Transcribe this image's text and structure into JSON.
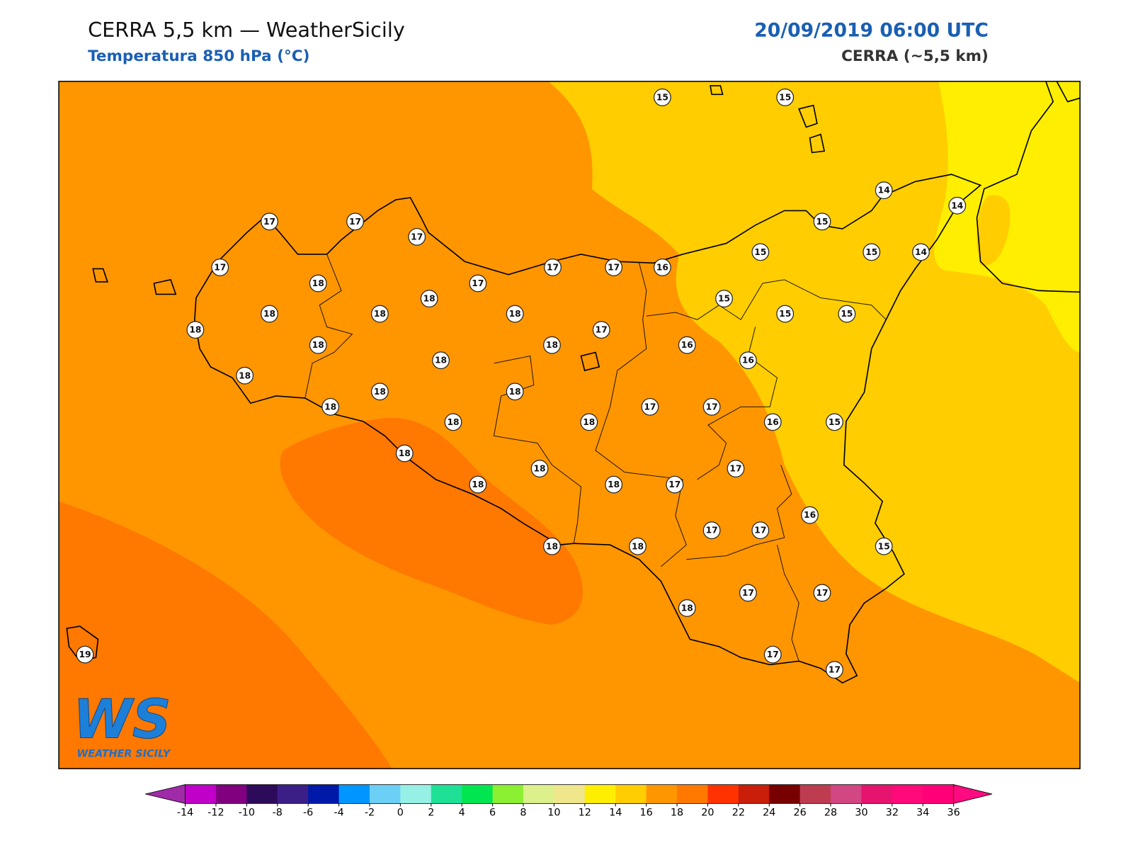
{
  "header": {
    "title": "CERRA 5,5 km — WeatherSicily",
    "subtitle": "Temperatura 850 hPa (°C)",
    "datetime": "20/09/2019 06:00 UTC",
    "model": "CERRA (~5,5 km)"
  },
  "logo": {
    "mark": "WS",
    "name": "WEATHER SICILY"
  },
  "stations": [
    15,
    15,
    14,
    14,
    17,
    17,
    17,
    15,
    17,
    17,
    17,
    16,
    15,
    15,
    14,
    18,
    18,
    17,
    15,
    18,
    18,
    18,
    18,
    17,
    15,
    15,
    18,
    18,
    16,
    18,
    16,
    18,
    18,
    18,
    18,
    17,
    17,
    18,
    18,
    16,
    15,
    18,
    17,
    18,
    18,
    18,
    17,
    16,
    17,
    17,
    18,
    18,
    15,
    17,
    17,
    18,
    19,
    17,
    17
  ],
  "colorbar": {
    "ticks": [
      -14,
      -12,
      -10,
      -8,
      -6,
      -4,
      -2,
      0,
      2,
      4,
      6,
      8,
      10,
      12,
      14,
      16,
      18,
      20,
      22,
      24,
      26,
      28,
      30,
      32,
      34,
      36
    ],
    "under_color": "#a02aa8",
    "over_color": "#ff0a80",
    "colors": [
      "#c000c8",
      "#800080",
      "#2e0a5a",
      "#3b1f87",
      "#0019a8",
      "#0096ff",
      "#6ccff6",
      "#96f0e6",
      "#1ee196",
      "#00e650",
      "#8cf032",
      "#dcf08c",
      "#f0e68c",
      "#ffee00",
      "#ffcd00",
      "#ff9600",
      "#ff7800",
      "#ff3200",
      "#c81e0a",
      "#780000",
      "#be3c50",
      "#d24682",
      "#e6146e",
      "#ff0a78",
      "#ff0078"
    ]
  }
}
